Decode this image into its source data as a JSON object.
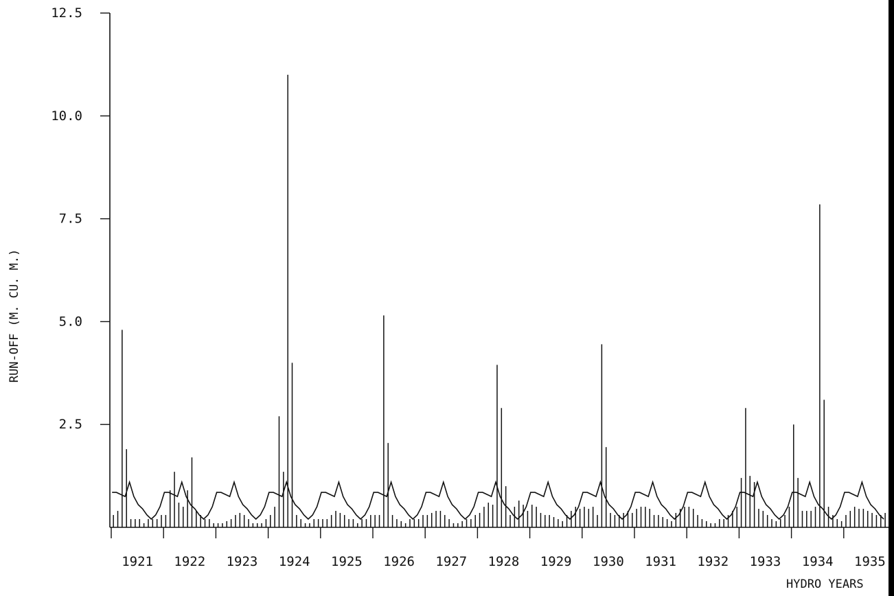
{
  "chart_data": {
    "type": "bar",
    "title": "",
    "xlabel": "HYDRO YEARS",
    "ylabel": "RUN-OFF (M. CU. M.)",
    "ylim": [
      0,
      12.5
    ],
    "yticks": [
      "12.5",
      "10.0",
      "7.5",
      "5.0",
      "2.5"
    ],
    "ytick_values": [
      12.5,
      10.0,
      7.5,
      5.0,
      2.5
    ],
    "years": [
      "1921",
      "1922",
      "1923",
      "1924",
      "1925",
      "1926",
      "1927",
      "1928",
      "1929",
      "1930",
      "1931",
      "1932",
      "1933",
      "1934",
      "1935"
    ],
    "months_per_year": 12,
    "series": [
      {
        "kind": "monthly-runoff-bars",
        "values": [
          0.3,
          0.4,
          4.8,
          1.9,
          0.2,
          0.2,
          0.2,
          0.1,
          0.2,
          0.2,
          0.2,
          0.3,
          0.3,
          0.9,
          1.35,
          0.6,
          0.5,
          0.9,
          1.7,
          0.4,
          0.3,
          0.2,
          0.2,
          0.1,
          0.1,
          0.1,
          0.15,
          0.2,
          0.3,
          0.35,
          0.3,
          0.2,
          0.1,
          0.1,
          0.1,
          0.2,
          0.3,
          0.5,
          2.7,
          1.35,
          11.0,
          4.0,
          0.3,
          0.2,
          0.1,
          0.1,
          0.2,
          0.2,
          0.2,
          0.2,
          0.3,
          0.4,
          0.35,
          0.3,
          0.2,
          0.2,
          0.1,
          0.2,
          0.2,
          0.3,
          0.3,
          0.3,
          5.15,
          2.05,
          0.3,
          0.2,
          0.15,
          0.1,
          0.2,
          0.2,
          0.2,
          0.3,
          0.3,
          0.35,
          0.4,
          0.4,
          0.3,
          0.2,
          0.1,
          0.1,
          0.15,
          0.2,
          0.2,
          0.3,
          0.35,
          0.5,
          0.6,
          0.55,
          3.95,
          2.9,
          1.0,
          0.3,
          0.5,
          0.65,
          0.55,
          0.4,
          0.55,
          0.5,
          0.35,
          0.3,
          0.3,
          0.25,
          0.2,
          0.15,
          0.3,
          0.4,
          0.5,
          0.45,
          0.5,
          0.45,
          0.5,
          0.3,
          4.45,
          1.95,
          0.35,
          0.3,
          0.3,
          0.35,
          0.4,
          0.35,
          0.45,
          0.5,
          0.5,
          0.45,
          0.3,
          0.3,
          0.25,
          0.2,
          0.15,
          0.35,
          0.45,
          0.5,
          0.5,
          0.45,
          0.3,
          0.2,
          0.15,
          0.1,
          0.1,
          0.2,
          0.2,
          0.3,
          0.4,
          0.5,
          1.2,
          2.9,
          1.25,
          1.1,
          0.45,
          0.4,
          0.3,
          0.2,
          0.15,
          0.2,
          0.3,
          0.5,
          2.5,
          1.2,
          0.4,
          0.4,
          0.4,
          0.5,
          7.85,
          3.1,
          0.5,
          0.3,
          0.2,
          0.15,
          0.3,
          0.4,
          0.5,
          0.45,
          0.45,
          0.4,
          0.35,
          0.3,
          0.3,
          0.35,
          0.3,
          0.3
        ]
      },
      {
        "kind": "mean-monthly-curve",
        "values": [
          0.85,
          0.85,
          0.8,
          0.75,
          1.1,
          0.75,
          0.55,
          0.45,
          0.3,
          0.2,
          0.3,
          0.5
        ]
      }
    ],
    "grid": false,
    "legend": "none"
  }
}
